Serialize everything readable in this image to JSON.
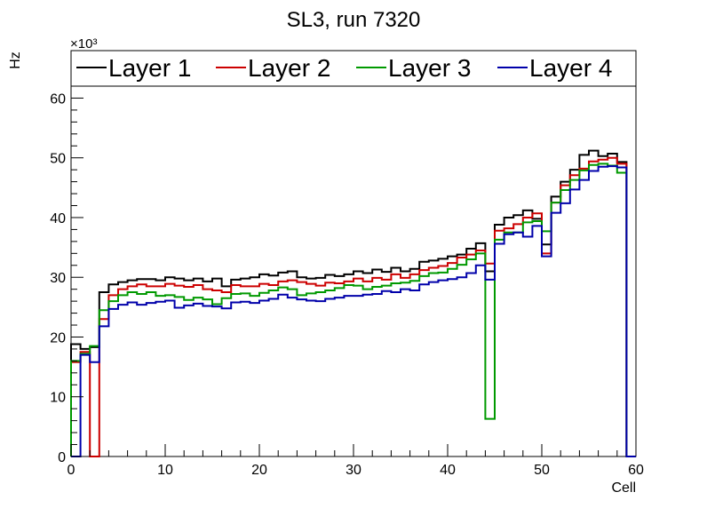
{
  "chart_data": {
    "type": "line",
    "title": "SL3, run 7320",
    "xlabel": "Cell",
    "ylabel": "Hz",
    "y_multiplier": "×10³",
    "xlim": [
      0,
      60
    ],
    "ylim": [
      0,
      62
    ],
    "x_ticks": [
      0,
      10,
      20,
      30,
      40,
      50,
      60
    ],
    "y_ticks": [
      0,
      10,
      20,
      30,
      40,
      50,
      60
    ],
    "grid": false,
    "legend_position": "top",
    "bin_edges_start": 0,
    "bin_width": 1,
    "series": [
      {
        "name": "Layer 1",
        "color": "#000000",
        "values": [
          18.8,
          18.0,
          18.3,
          27.5,
          28.8,
          29.2,
          29.5,
          29.7,
          29.7,
          29.5,
          30.0,
          29.8,
          29.5,
          29.8,
          29.3,
          29.8,
          28.5,
          29.6,
          29.8,
          30.0,
          30.5,
          30.3,
          30.8,
          31.0,
          30.0,
          29.8,
          29.9,
          30.4,
          30.2,
          30.5,
          31.0,
          30.7,
          31.3,
          30.9,
          31.6,
          31.0,
          31.4,
          32.6,
          32.8,
          33.1,
          33.5,
          33.8,
          34.8,
          35.7,
          31.0,
          38.8,
          40.0,
          40.4,
          41.2,
          39.8,
          35.5,
          43.5,
          46.0,
          48.0,
          50.5,
          51.2,
          50.3,
          50.7,
          49.3,
          0
        ]
      },
      {
        "name": "Layer 2",
        "color": "#cc0000",
        "values": [
          15.8,
          17.5,
          0,
          23.0,
          27.0,
          28.0,
          28.5,
          28.8,
          28.5,
          28.5,
          28.9,
          28.6,
          28.4,
          28.7,
          28.0,
          27.8,
          27.5,
          28.7,
          28.5,
          28.5,
          28.9,
          28.7,
          29.3,
          29.5,
          29.2,
          28.9,
          28.6,
          29.1,
          29.0,
          29.3,
          29.8,
          29.3,
          29.9,
          29.6,
          30.5,
          29.9,
          30.5,
          31.2,
          31.6,
          31.9,
          32.4,
          33.3,
          33.8,
          34.5,
          32.3,
          37.8,
          38.2,
          38.9,
          40.0,
          40.7,
          34.0,
          42.5,
          45.4,
          47.1,
          48.2,
          49.4,
          49.7,
          50.0,
          49.0,
          0
        ]
      },
      {
        "name": "Layer 3",
        "color": "#009900",
        "values": [
          16.0,
          17.2,
          18.5,
          24.5,
          26.0,
          27.0,
          27.5,
          27.2,
          27.5,
          26.9,
          27.0,
          26.7,
          26.2,
          26.6,
          26.3,
          25.5,
          26.5,
          27.2,
          27.3,
          26.9,
          27.4,
          27.8,
          28.3,
          28.0,
          27.0,
          27.3,
          27.5,
          27.8,
          28.2,
          28.7,
          28.6,
          28.0,
          28.4,
          28.6,
          29.0,
          29.1,
          29.4,
          30.2,
          30.7,
          30.8,
          31.4,
          32.1,
          33.0,
          34.0,
          6.3,
          36.3,
          37.5,
          37.5,
          39.2,
          39.4,
          37.7,
          42.5,
          44.6,
          46.3,
          47.9,
          48.8,
          49.0,
          48.7,
          47.5,
          0
        ]
      },
      {
        "name": "Layer 4",
        "color": "#0000aa",
        "values": [
          0,
          17.0,
          15.8,
          21.8,
          24.7,
          25.4,
          25.8,
          25.4,
          25.7,
          25.9,
          26.1,
          24.9,
          25.3,
          25.6,
          25.2,
          25.1,
          24.8,
          25.8,
          25.9,
          25.7,
          26.1,
          26.4,
          27.1,
          26.6,
          26.3,
          26.1,
          26.0,
          26.4,
          26.6,
          26.9,
          26.9,
          27.1,
          27.2,
          27.7,
          27.5,
          28.0,
          27.8,
          28.8,
          29.2,
          29.5,
          29.7,
          30.0,
          30.7,
          32.0,
          29.6,
          35.6,
          37.2,
          37.5,
          36.8,
          38.6,
          33.5,
          40.8,
          42.4,
          44.7,
          46.3,
          47.8,
          48.5,
          48.6,
          48.4,
          0
        ]
      }
    ]
  }
}
